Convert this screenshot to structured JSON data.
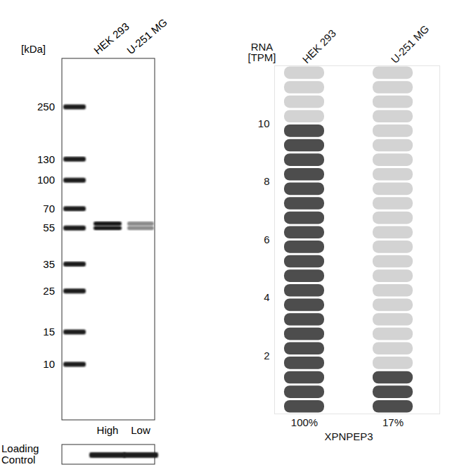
{
  "chart_data": {
    "type": "pill",
    "y_label": "RNA [TPM]",
    "ylim": [
      0,
      12
    ],
    "yticks": [
      2,
      4,
      6,
      8,
      10
    ],
    "categories": [
      "HEK 293",
      "U-251 MG"
    ],
    "values": [
      10,
      1.7
    ],
    "color": "#4d4d4d",
    "relative_labels": [
      "100%",
      "17%"
    ],
    "gene": "XPNPEP3"
  },
  "western_blot": {
    "y_label": "[kDa]",
    "lanes": [
      "HEK 293",
      "U-251 MG"
    ],
    "markers": [
      250,
      130,
      100,
      70,
      55,
      35,
      25,
      15,
      10
    ],
    "levels": [
      "High",
      "Low"
    ],
    "band_kda": [
      58,
      55
    ],
    "loading_control": "Loading Control"
  }
}
